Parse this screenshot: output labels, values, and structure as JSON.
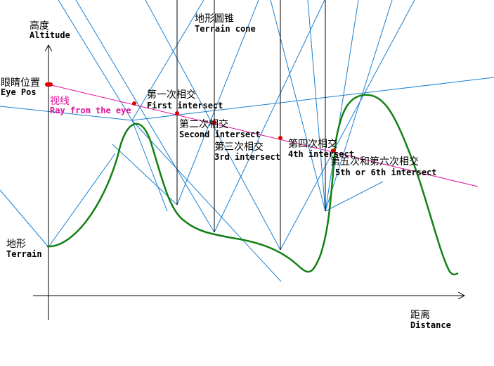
{
  "axes": {
    "y_label_zh": "高度",
    "y_label_en": "Altitude",
    "x_label_zh": "距离",
    "x_label_en": "Distance"
  },
  "labels": {
    "eye_zh": "眼睛位置",
    "eye_en": "Eye Pos",
    "ray_zh": "视线",
    "ray_en": "Ray from the eye",
    "cone_zh": "地形圆锥",
    "cone_en": "Terrain cone",
    "terrain_zh": "地形",
    "terrain_en": "Terrain"
  },
  "intersections": [
    {
      "zh": "第一次相交",
      "en": "First intersect"
    },
    {
      "zh": "第二次相交",
      "en": "Second intersect"
    },
    {
      "zh": "第三次相交",
      "en": "3rd intersect"
    },
    {
      "zh": "第四次相交",
      "en": "4th intersect"
    },
    {
      "zh": "第五次和第六次相交",
      "en": "5th or 6th intersect"
    }
  ],
  "colors": {
    "terrain": "#128012",
    "cone": "#1a7fd0",
    "ray": "#e0109a",
    "intersect_point": "#e00000"
  }
}
